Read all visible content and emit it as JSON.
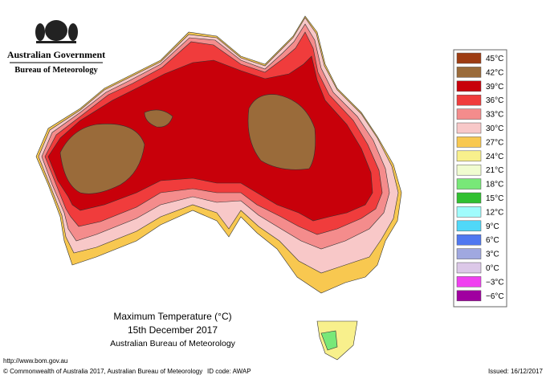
{
  "header": {
    "title": "Australian Government",
    "subtitle": "Bureau of Meteorology"
  },
  "map": {
    "title": "Maximum Temperature (°C)",
    "date": "15th December 2017",
    "source": "Australian Bureau of Meteorology"
  },
  "legend": {
    "items": [
      {
        "label": "45°C",
        "color": "#9e3c12"
      },
      {
        "label": "42°C",
        "color": "#9a6b3a"
      },
      {
        "label": "39°C",
        "color": "#c8000a"
      },
      {
        "label": "36°C",
        "color": "#f03c3c"
      },
      {
        "label": "33°C",
        "color": "#f48c8c"
      },
      {
        "label": "30°C",
        "color": "#f8c8c8"
      },
      {
        "label": "27°C",
        "color": "#f8c850"
      },
      {
        "label": "24°C",
        "color": "#f8f08c"
      },
      {
        "label": "21°C",
        "color": "#f0fcd0"
      },
      {
        "label": "18°C",
        "color": "#78e878"
      },
      {
        "label": "15°C",
        "color": "#30c030"
      },
      {
        "label": "12°C",
        "color": "#a0fcfc"
      },
      {
        "label": "9°C",
        "color": "#50d8f8"
      },
      {
        "label": "6°C",
        "color": "#5078f0"
      },
      {
        "label": "3°C",
        "color": "#a0a8e0"
      },
      {
        "label": "0°C",
        "color": "#dcc8e8"
      },
      {
        "label": "−3°C",
        "color": "#f040f0"
      },
      {
        "label": "−6°C",
        "color": "#a000a0"
      }
    ]
  },
  "footer": {
    "url": "http://www.bom.gov.au",
    "copyright": "© Commonwealth of Australia 2017, Australian Bureau of Meteorology",
    "id": "ID code: AWAP",
    "issued": "Issued: 16/12/2017"
  }
}
